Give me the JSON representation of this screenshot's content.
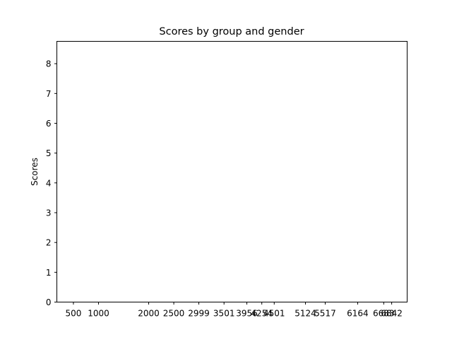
{
  "chart_data": {
    "type": "bar",
    "title": "Scores by group and gender",
    "xlabel": "",
    "ylabel": "Scores",
    "x_ticks": [
      500,
      1000,
      2000,
      2500,
      2999,
      3501,
      3956,
      4254,
      4501,
      5124,
      5517,
      6164,
      6683,
      6842
    ],
    "x_lim": [
      170,
      7150
    ],
    "ylim": [
      0,
      8.75
    ],
    "y_ticks": [
      0,
      1,
      2,
      3,
      4,
      5,
      6,
      7,
      8
    ],
    "grid": false,
    "legend": "none"
  }
}
